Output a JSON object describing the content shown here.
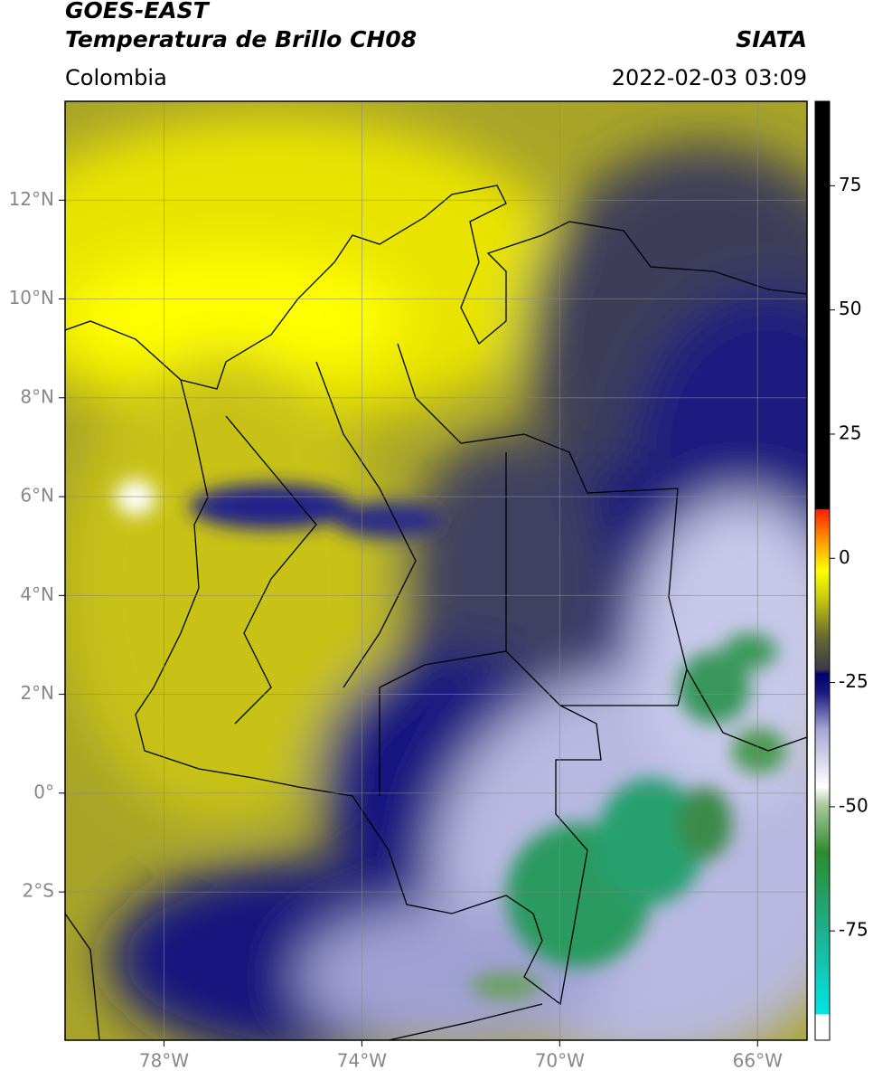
{
  "header": {
    "title_line1": "GOES-EAST",
    "title_line2": "Temperatura de Brillo CH08",
    "agency": "SIATA",
    "region": "Colombia",
    "datetime": "2022-02-03 03:09"
  },
  "map": {
    "xlim": [
      -80,
      -65
    ],
    "ylim": [
      -5,
      14
    ],
    "xticks": [
      {
        "value": -78,
        "label": "78°W"
      },
      {
        "value": -74,
        "label": "74°W"
      },
      {
        "value": -70,
        "label": "70°W"
      },
      {
        "value": -66,
        "label": "66°W"
      }
    ],
    "yticks": [
      {
        "value": 12,
        "label": "12°N"
      },
      {
        "value": 10,
        "label": "10°N"
      },
      {
        "value": 8,
        "label": "8°N"
      },
      {
        "value": 6,
        "label": "6°N"
      },
      {
        "value": 4,
        "label": "4°N"
      },
      {
        "value": 2,
        "label": "2°N"
      },
      {
        "value": 0,
        "label": "0°"
      },
      {
        "value": -2,
        "label": "2°S"
      }
    ],
    "grid": true
  },
  "colorbar": {
    "lim": [
      -97,
      92
    ],
    "ticks": [
      75,
      50,
      25,
      0,
      -25,
      -50,
      -75
    ]
  }
}
